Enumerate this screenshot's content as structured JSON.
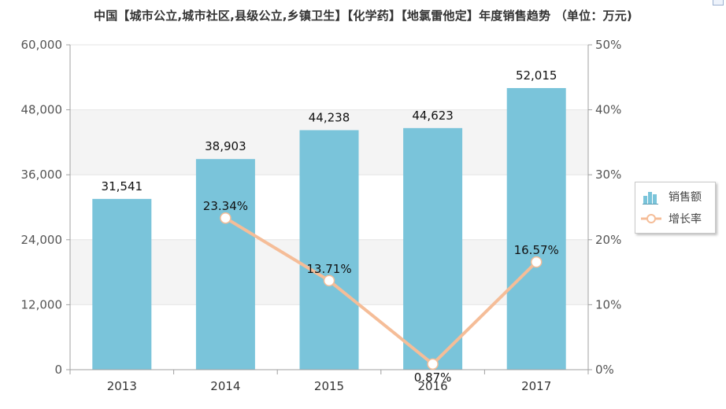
{
  "chart_data": {
    "type": "bar",
    "title": "中国【城市公立,城市社区,县级公立,乡镇卫生】【化学药】【地氯雷他定】年度销售趋势 （单位：万元)",
    "categories": [
      "2013",
      "2014",
      "2015",
      "2016",
      "2017"
    ],
    "series": [
      {
        "name": "销售额",
        "type": "bar",
        "axis": "left",
        "values": [
          31541,
          38903,
          44238,
          44623,
          52015
        ],
        "labels": [
          "31,541",
          "38,903",
          "44,238",
          "44,623",
          "52,015"
        ]
      },
      {
        "name": "增长率",
        "type": "line",
        "axis": "right",
        "values": [
          null,
          23.34,
          13.71,
          0.87,
          16.57
        ],
        "labels": [
          null,
          "23.34%",
          "13.71%",
          "0.87%",
          "16.57%"
        ]
      }
    ],
    "y_left": {
      "range": [
        0,
        60000
      ],
      "ticks": [
        "0",
        "12,000",
        "24,000",
        "36,000",
        "48,000",
        "60,000"
      ]
    },
    "y_right": {
      "range": [
        0,
        50
      ],
      "unit": "%",
      "ticks": [
        "0%",
        "10%",
        "20%",
        "30%",
        "40%",
        "50%"
      ]
    },
    "grid": true,
    "legend_position": "right",
    "colors": {
      "bar": "#7ac4da",
      "line": "#f5bd98",
      "marker_fill": "#ffffff",
      "band": "#f4f4f4",
      "axis": "#a0a0a0"
    }
  }
}
